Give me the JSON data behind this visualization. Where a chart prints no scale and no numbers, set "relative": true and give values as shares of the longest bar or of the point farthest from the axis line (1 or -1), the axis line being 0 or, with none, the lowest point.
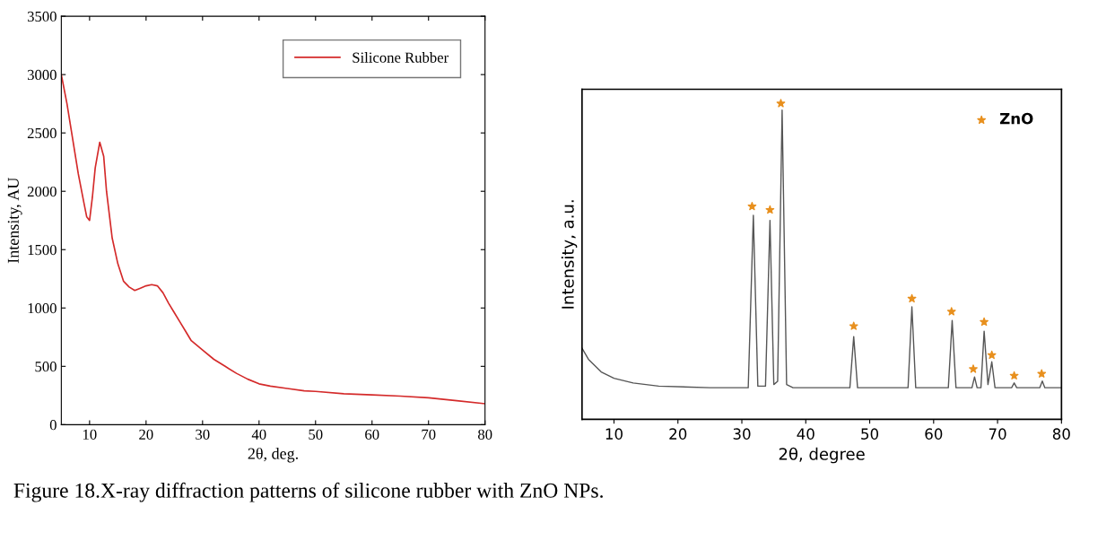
{
  "chart_data": [
    {
      "type": "line",
      "xlabel": "2θ, deg.",
      "ylabel": "Intensity, AU",
      "xlim": [
        5,
        80
      ],
      "xticks": [
        10,
        20,
        30,
        40,
        50,
        60,
        70,
        80
      ],
      "ylim": [
        0,
        3500
      ],
      "yticks": [
        0,
        500,
        1000,
        1500,
        2000,
        2500,
        3000,
        3500
      ],
      "legend": "top right",
      "grid": false,
      "marker": "none",
      "line_style": "solid",
      "series": [
        {
          "name": "Silicone Rubber",
          "color": "#d42a2a",
          "x": [
            5,
            6,
            7,
            8,
            9,
            9.5,
            10,
            10.5,
            11,
            11.8,
            12.5,
            13,
            14,
            15,
            16,
            17,
            18,
            19,
            20,
            21,
            22,
            23,
            24,
            25,
            26,
            27,
            28,
            30,
            32,
            34,
            36,
            38,
            40,
            42,
            45,
            48,
            50,
            55,
            60,
            65,
            70,
            75,
            80
          ],
          "values": [
            3000,
            2750,
            2450,
            2150,
            1900,
            1780,
            1750,
            1950,
            2200,
            2420,
            2300,
            2000,
            1600,
            1380,
            1230,
            1180,
            1150,
            1170,
            1190,
            1200,
            1190,
            1130,
            1040,
            960,
            880,
            800,
            720,
            640,
            560,
            500,
            440,
            390,
            350,
            330,
            310,
            290,
            285,
            265,
            255,
            245,
            230,
            205,
            180
          ]
        }
      ],
      "annotations": [
        "Figure 18.X-ray diffraction patterns of silicone rubber with ZnO NPs."
      ]
    },
    {
      "type": "line",
      "relative": true,
      "xlabel": "2θ, degree",
      "ylabel": "Intensity, a.u.",
      "xlim": [
        5,
        80
      ],
      "xticks": [
        10,
        20,
        30,
        40,
        50,
        60,
        70,
        80
      ],
      "tick_labels": "x",
      "legend": "top right",
      "grid": false,
      "series": [
        {
          "color": "#555555",
          "marker": "none",
          "line_style": "solid",
          "x": [
            5,
            6,
            8,
            10,
            13,
            17,
            25,
            31.0,
            31.8,
            32.5,
            33.7,
            34.4,
            35.0,
            35.6,
            36.3,
            37.0,
            38,
            46.9,
            47.5,
            48.1,
            56.0,
            56.6,
            57.2,
            62.3,
            62.9,
            63.5,
            66.0,
            66.4,
            66.8,
            67.4,
            67.9,
            68.5,
            69.1,
            69.6,
            72.2,
            72.6,
            73.0,
            76.6,
            77.0,
            77.4,
            80
          ],
          "values": [
            0.225,
            0.19,
            0.15,
            0.13,
            0.115,
            0.105,
            0.1,
            0.1,
            0.646,
            0.105,
            0.105,
            0.63,
            0.11,
            0.12,
            0.979,
            0.11,
            0.1,
            0.1,
            0.262,
            0.1,
            0.1,
            0.356,
            0.1,
            0.1,
            0.313,
            0.1,
            0.1,
            0.134,
            0.1,
            0.1,
            0.279,
            0.11,
            0.182,
            0.1,
            0.1,
            0.115,
            0.1,
            0.1,
            0.121,
            0.1,
            0.1
          ]
        },
        {
          "type": "scatter",
          "name": "ZnO",
          "color": "#e8901e",
          "marker": "star",
          "x": [
            31.6,
            34.4,
            36.1,
            47.5,
            56.6,
            62.8,
            66.2,
            67.9,
            69.1,
            72.6,
            76.9
          ],
          "values": [
            0.674,
            0.663,
            1.0,
            0.295,
            0.382,
            0.341,
            0.159,
            0.308,
            0.203,
            0.138,
            0.144
          ]
        }
      ]
    }
  ]
}
